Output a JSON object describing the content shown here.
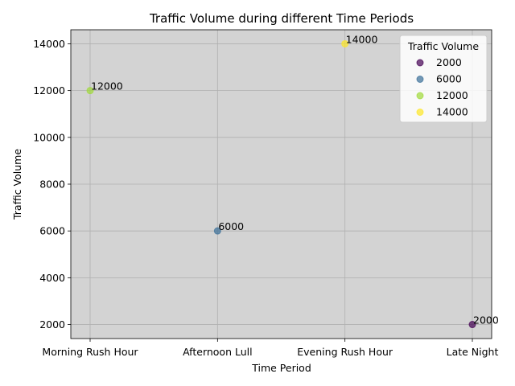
{
  "chart_data": {
    "type": "scatter",
    "title": "Traffic Volume during different Time Periods",
    "xlabel": "Time Period",
    "ylabel": "Traffic Volume",
    "categories": [
      "Morning Rush Hour",
      "Afternoon Lull",
      "Evening Rush Hour",
      "Late Night"
    ],
    "values": [
      12000,
      6000,
      14000,
      2000
    ],
    "point_labels": [
      "12000",
      "6000",
      "14000",
      "2000"
    ],
    "point_colors": [
      "#a0da39",
      "#3b6f98",
      "#fde725",
      "#440154"
    ],
    "ylim": [
      1400,
      14600
    ],
    "yticks": [
      2000,
      4000,
      6000,
      8000,
      10000,
      12000,
      14000
    ],
    "grid": true,
    "background_color": "#d3d3d3",
    "legend": {
      "title": "Traffic Volume",
      "placement": "top-right",
      "entries": [
        {
          "label": "2000",
          "color": "#440154"
        },
        {
          "label": "6000",
          "color": "#3b6f98"
        },
        {
          "label": "12000",
          "color": "#a0da39"
        },
        {
          "label": "14000",
          "color": "#fde725"
        }
      ]
    }
  }
}
